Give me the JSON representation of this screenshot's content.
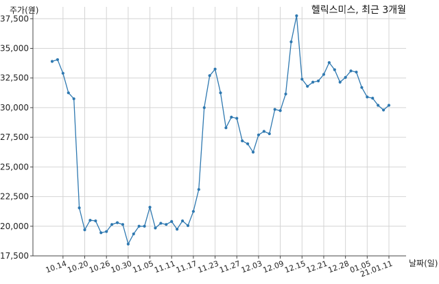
{
  "chart_data": {
    "type": "line",
    "title": "헬릭스미스, 최근 3개월",
    "xlabel": "날짜(일)",
    "ylabel": "주가(원)",
    "ylim": [
      17500,
      38500
    ],
    "yticks": [
      17500,
      20000,
      22500,
      25000,
      27500,
      30000,
      32500,
      35000,
      37500
    ],
    "ytick_labels": [
      "17,500",
      "20,000",
      "22,500",
      "25,000",
      "27,500",
      "30,000",
      "32,500",
      "35,000",
      "37,500"
    ],
    "xtick_labels": [
      "10.14",
      "10.20",
      "10.26",
      "10.30",
      "11.05",
      "11.11",
      "11.17",
      "11.23",
      "11.27",
      "12.03",
      "12.09",
      "12.15",
      "12.21",
      "12.28",
      "01.05",
      "21.01.11"
    ],
    "xtick_index": [
      2,
      6,
      10,
      14,
      18,
      22,
      26,
      30,
      34,
      38,
      42,
      46,
      50,
      54,
      58,
      62
    ],
    "grid": true,
    "line_color": "#2e78b0",
    "series": [
      {
        "values": [
          33900,
          34050,
          32900,
          31250,
          30750,
          21550,
          19700,
          20500,
          20450,
          19450,
          19550,
          20150,
          20300,
          20150,
          18500,
          19350,
          20000,
          20000,
          21600,
          19850,
          20250,
          20150,
          20400,
          19750,
          20450,
          20050,
          21250,
          23100,
          30000,
          32700,
          33250,
          31250,
          28300,
          29200,
          29100,
          27200,
          26950,
          26250,
          27700,
          28000,
          27800,
          29850,
          29750,
          31150,
          35550,
          37750,
          32400,
          31800,
          32150,
          32250,
          32800,
          33800,
          33200,
          32150,
          32550,
          33100,
          33000,
          31700,
          30900,
          30800,
          30200,
          29800,
          30200
        ]
      }
    ]
  }
}
